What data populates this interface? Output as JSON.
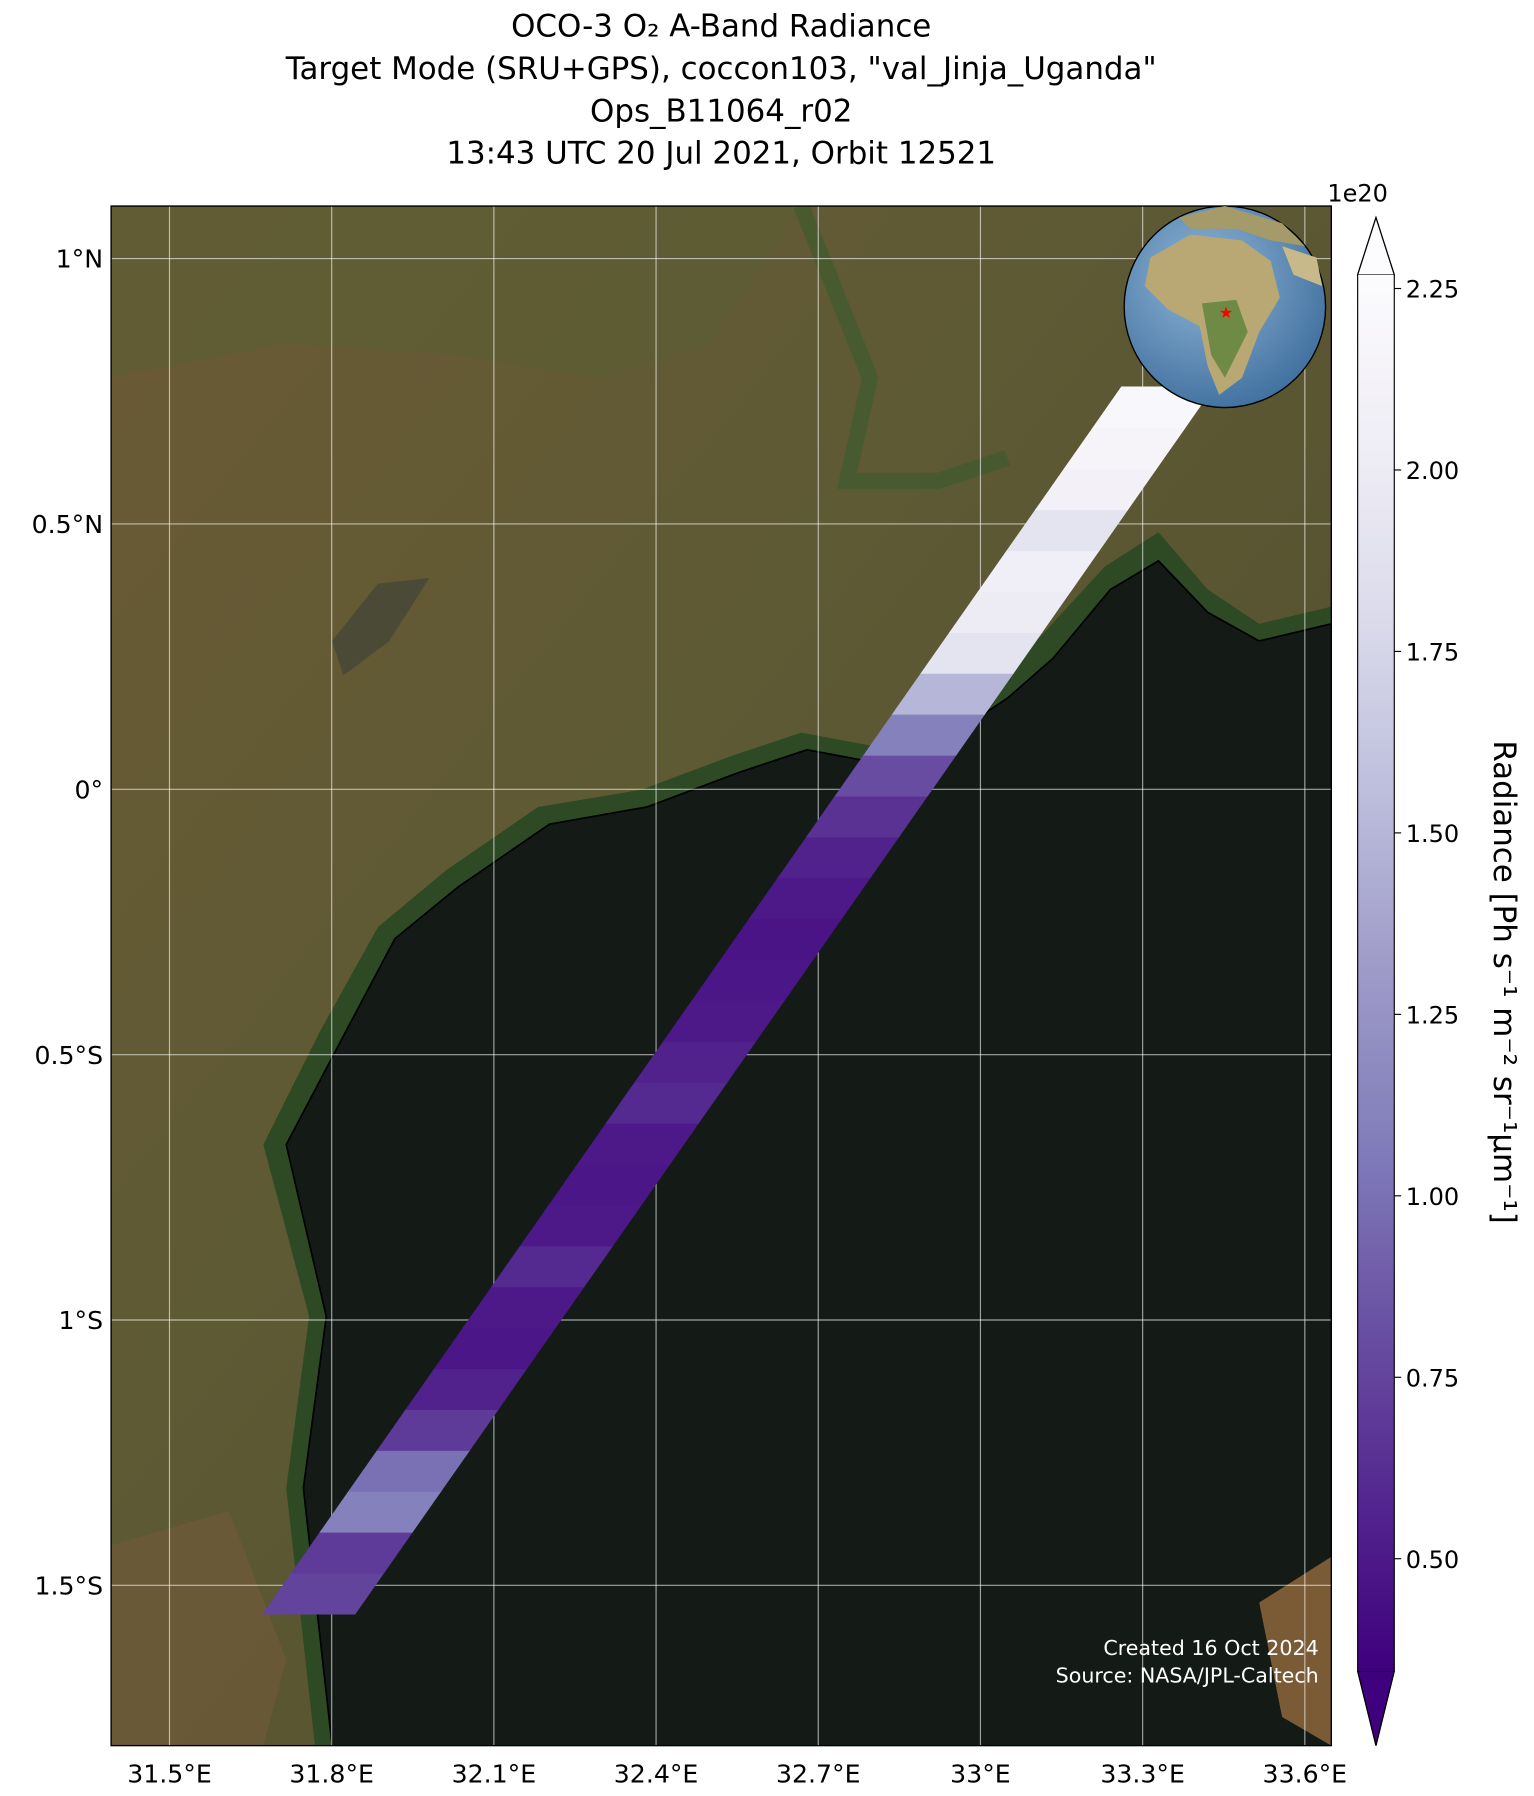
{
  "chart_data": {
    "type": "map",
    "title": [
      "OCO-3 O₂ A-Band Radiance",
      "Target Mode (SRU+GPS), coccon103, \"val_Jinja_Uganda\"",
      "Ops_B11064_r02",
      "13:43 UTC 20 Jul 2021, Orbit 12521"
    ],
    "xlim": [
      31.392,
      33.649
    ],
    "ylim": [
      -1.802,
      1.099
    ],
    "xticks": [
      {
        "value": 31.5,
        "label": "31.5°E"
      },
      {
        "value": 31.8,
        "label": "31.8°E"
      },
      {
        "value": 32.1,
        "label": "32.1°E"
      },
      {
        "value": 32.4,
        "label": "32.4°E"
      },
      {
        "value": 32.7,
        "label": "32.7°E"
      },
      {
        "value": 33.0,
        "label": "33°E"
      },
      {
        "value": 33.3,
        "label": "33.3°E"
      },
      {
        "value": 33.6,
        "label": "33.6°E"
      }
    ],
    "yticks": [
      {
        "value": 1,
        "label": "1°N"
      },
      {
        "value": 0.5,
        "label": "0.5°N"
      },
      {
        "value": 0,
        "label": "0°"
      },
      {
        "value": -0.5,
        "label": "0.5°S"
      },
      {
        "value": -1,
        "label": "1°S"
      },
      {
        "value": -1.5,
        "label": "1.5°S"
      }
    ],
    "grid": true,
    "swath": {
      "start": [
        31.758,
        -1.554
      ],
      "end": [
        33.346,
        0.758
      ],
      "width": 0.17,
      "radiance": [
        0.75,
        0.7,
        1.1,
        1.0,
        0.7,
        0.55,
        0.48,
        0.5,
        0.6,
        0.5,
        0.48,
        0.5,
        0.6,
        0.55,
        0.5,
        0.48,
        0.47,
        0.5,
        0.55,
        0.65,
        0.8,
        1.1,
        1.5,
        1.9,
        2.0,
        2.05,
        1.9,
        2.1,
        2.15,
        2.2
      ]
    },
    "target": {
      "lon": 33.162,
      "lat": 0.504,
      "color": "#ff0000"
    },
    "colorbar": {
      "label": "Radiance [Ph s⁻¹ m⁻² sr⁻¹μm⁻¹]",
      "offset_label": "1e20",
      "clim": [
        0.345,
        2.269
      ],
      "ticks": [
        {
          "value": 0.5,
          "label": "0.50"
        },
        {
          "value": 0.75,
          "label": "0.75"
        },
        {
          "value": 1.0,
          "label": "1.00"
        },
        {
          "value": 1.25,
          "label": "1.25"
        },
        {
          "value": 1.5,
          "label": "1.50"
        },
        {
          "value": 1.75,
          "label": "1.75"
        },
        {
          "value": 2.0,
          "label": "2.00"
        },
        {
          "value": 2.25,
          "label": "2.25"
        }
      ],
      "colormap": [
        "#3f007d",
        "#54278f",
        "#6a51a3",
        "#807dba",
        "#9e9ac8",
        "#bcbddc",
        "#dadaeb",
        "#efedf5",
        "#fcfbfd"
      ]
    },
    "credits": [
      "Created 16 Oct 2024",
      "Source: NASA/JPL-Caltech"
    ]
  }
}
